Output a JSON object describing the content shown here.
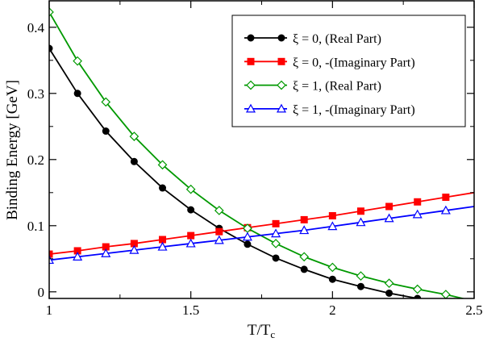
{
  "chart_data": {
    "type": "line",
    "xlabel": "T/T",
    "xlabel_subscript": "c",
    "ylabel": "Binding Energy [GeV]",
    "xlim": [
      1.0,
      2.5
    ],
    "ylim": [
      -0.01,
      0.44
    ],
    "x_ticks": [
      1,
      1.5,
      2,
      2.5
    ],
    "x_tick_labels": [
      "1",
      "1.5",
      "2",
      "2.5"
    ],
    "y_ticks": [
      0,
      0.1,
      0.2,
      0.3,
      0.4
    ],
    "y_tick_labels": [
      "0",
      "0.1",
      "0.2",
      "0.3",
      "0.4"
    ],
    "grid": false,
    "legend_position": "top-right",
    "x": [
      1.0,
      1.1,
      1.2,
      1.3,
      1.4,
      1.5,
      1.6,
      1.7,
      1.8,
      1.9,
      2.0,
      2.1,
      2.2,
      2.3,
      2.4
    ],
    "series": [
      {
        "name": "ξ = 0, (Real Part)",
        "color": "#000000",
        "marker": "circle-filled",
        "x": [
          1.0,
          1.1,
          1.2,
          1.3,
          1.4,
          1.5,
          1.6,
          1.7,
          1.8,
          1.9,
          2.0,
          2.1,
          2.2,
          2.3
        ],
        "values": [
          0.368,
          0.3,
          0.243,
          0.197,
          0.157,
          0.124,
          0.096,
          0.072,
          0.051,
          0.034,
          0.019,
          0.008,
          -0.002,
          -0.01
        ],
        "curve_end": [
          2.31,
          -0.011
        ]
      },
      {
        "name": "ξ = 0, -(Imaginary Part)",
        "color": "#ff0000",
        "marker": "square-filled",
        "x": [
          1.0,
          1.1,
          1.2,
          1.3,
          1.4,
          1.5,
          1.6,
          1.7,
          1.8,
          1.9,
          2.0,
          2.1,
          2.2,
          2.3,
          2.4
        ],
        "values": [
          0.057,
          0.062,
          0.068,
          0.073,
          0.079,
          0.085,
          0.091,
          0.097,
          0.103,
          0.109,
          0.115,
          0.122,
          0.129,
          0.136,
          0.143
        ],
        "curve_end": [
          2.5,
          0.15
        ]
      },
      {
        "name": "ξ = 1, (Real Part)",
        "color": "#009900",
        "marker": "diamond-open",
        "x": [
          1.0,
          1.1,
          1.2,
          1.3,
          1.4,
          1.5,
          1.6,
          1.7,
          1.8,
          1.9,
          2.0,
          2.1,
          2.2,
          2.3,
          2.4
        ],
        "values": [
          0.423,
          0.349,
          0.287,
          0.235,
          0.192,
          0.155,
          0.123,
          0.096,
          0.073,
          0.053,
          0.037,
          0.024,
          0.013,
          0.004,
          -0.004
        ],
        "curve_end": [
          2.47,
          -0.011
        ]
      },
      {
        "name": "ξ = 1, -(Imaginary Part)",
        "color": "#0000ff",
        "marker": "triangle-open",
        "x": [
          1.0,
          1.1,
          1.2,
          1.3,
          1.4,
          1.5,
          1.6,
          1.7,
          1.8,
          1.9,
          2.0,
          2.1,
          2.2,
          2.3,
          2.4
        ],
        "values": [
          0.048,
          0.053,
          0.058,
          0.063,
          0.068,
          0.073,
          0.078,
          0.083,
          0.088,
          0.093,
          0.099,
          0.105,
          0.111,
          0.117,
          0.123
        ],
        "curve_end": [
          2.5,
          0.129
        ]
      }
    ]
  }
}
